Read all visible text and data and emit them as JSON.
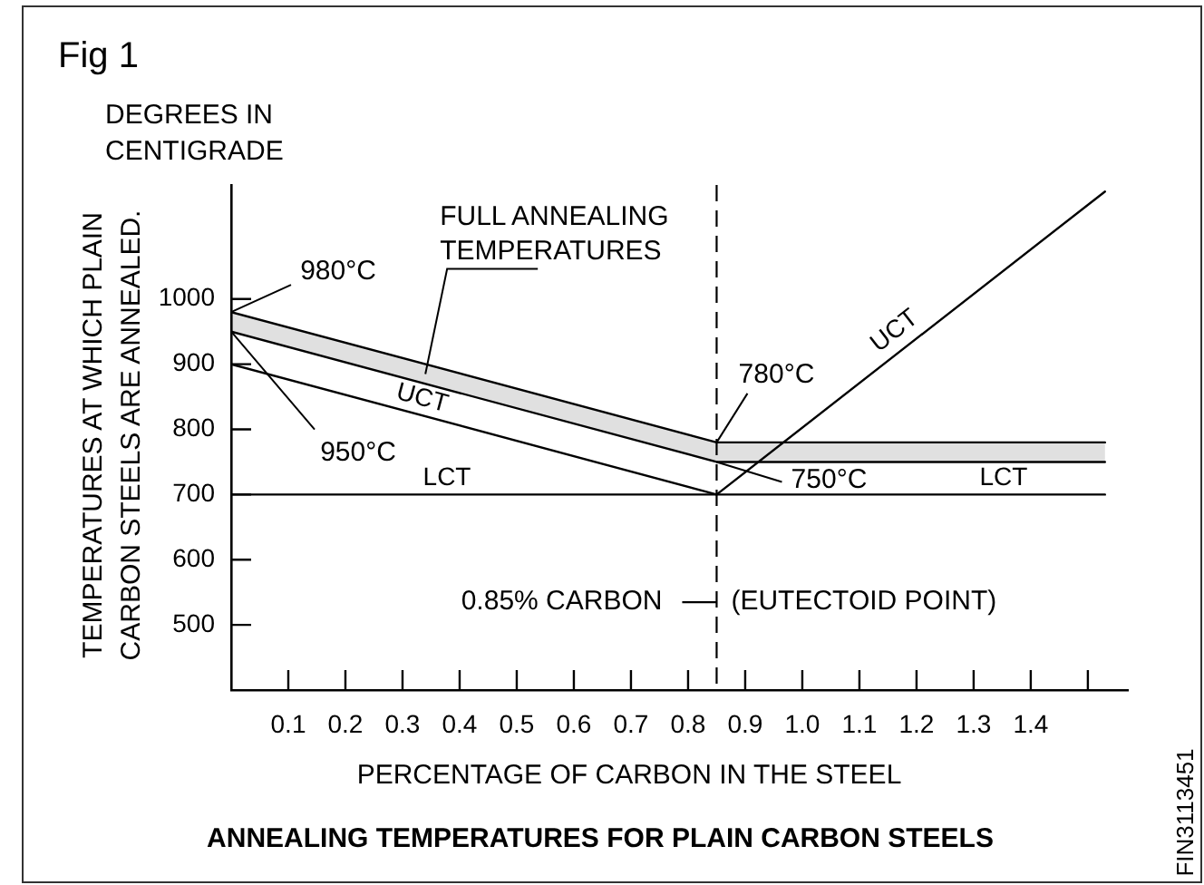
{
  "chart_data": {
    "type": "line",
    "title": "ANNEALING TEMPERATURES FOR PLAIN CARBON STEELS",
    "xlabel": "PERCENTAGE OF CARBON IN THE STEEL",
    "ylabel": "TEMPERATURES AT WHICH PLAIN CARBON STEELS ARE ANNEALED.",
    "series": [
      {
        "color": "#000000",
        "x": [
          0,
          0.85,
          1.53
        ],
        "values": [
          980,
          780,
          780
        ],
        "lower": [
          950,
          750,
          750
        ],
        "upper": [
          980,
          780,
          780
        ]
      },
      {
        "color": "#000000",
        "x": [
          0,
          0.85,
          1.53
        ],
        "values": [
          950,
          750,
          750
        ]
      },
      {
        "name": "UCT",
        "color": "#000000",
        "x": [
          0,
          0.85,
          1.53
        ],
        "values": [
          900,
          700,
          1165
        ]
      },
      {
        "name": "LCT",
        "color": "#000000",
        "x": [
          0,
          1.53
        ],
        "values": [
          700,
          700
        ]
      }
    ],
    "xlim": [
      0,
      1.57
    ],
    "xticks": [
      0.1,
      0.2,
      0.3,
      0.4,
      0.5,
      0.6,
      0.7,
      0.8,
      0.9,
      {
        "value": 1,
        "label": "1.0"
      },
      1.1,
      1.2,
      1.3,
      1.4,
      {
        "value": 1.5,
        "label": null
      }
    ],
    "ylim": [
      400,
      1175
    ],
    "yticks": [
      500,
      600,
      700,
      800,
      900,
      1000
    ],
    "ref_lines": [
      {
        "axis": "x",
        "value": 0.85,
        "label": "0.85% CARBON",
        "line_style": "dashed",
        "color": "#000000"
      }
    ],
    "annotations": [
      "Fig 1",
      "DEGREES IN CENTIGRADE",
      {
        "text": "980°C",
        "x": 0,
        "y": 980
      },
      {
        "text": "950°C",
        "x": 0,
        "y": 950
      },
      {
        "text": "FULL ANNEALING TEMPERATURES",
        "x": 0.34,
        "y": 885
      },
      {
        "text": "780°C",
        "x": 0.85,
        "y": 780
      },
      {
        "text": "750°C",
        "x": 0.85,
        "y": 750
      },
      {
        "text": "(EUTECTOID POINT)",
        "x": 0.85,
        "y": 535
      },
      "FIN3113451"
    ],
    "grid": false,
    "legend": false,
    "marker": "none",
    "line_style": "solid"
  }
}
